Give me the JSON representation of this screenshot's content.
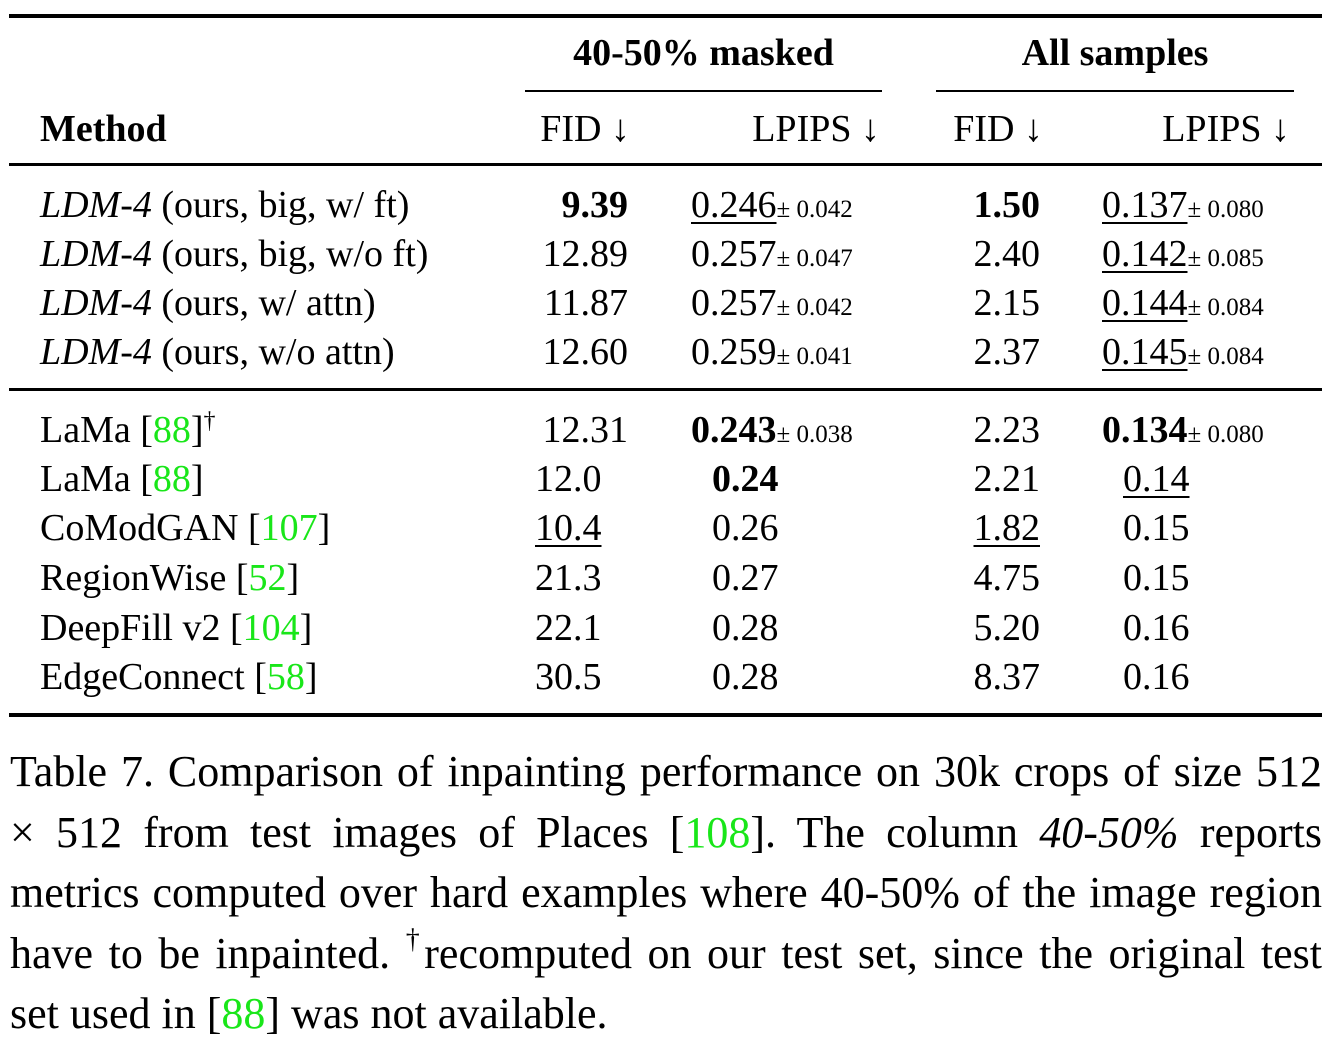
{
  "table": {
    "group_headers": [
      "40-50% masked",
      "All samples"
    ],
    "column_headers": {
      "method": "Method",
      "fid_a": "FID ↓",
      "lpips_a": "LPIPS ↓",
      "fid_b": "FID ↓",
      "lpips_b": "LPIPS ↓"
    },
    "section_1": [
      {
        "method_name": "LDM-4",
        "method_suffix": " (ours, big, w/ ft)",
        "fid_a": "9.39",
        "lpips_a": "0.246",
        "lpips_a_pm": "± 0.042",
        "fid_b": "1.50",
        "lpips_b": "0.137",
        "lpips_b_pm": "± 0.080"
      },
      {
        "method_name": "LDM-4",
        "method_suffix": " (ours, big, w/o ft)",
        "fid_a": "12.89",
        "lpips_a": "0.257",
        "lpips_a_pm": "± 0.047",
        "fid_b": "2.40",
        "lpips_b": "0.142",
        "lpips_b_pm": "± 0.085"
      },
      {
        "method_name": "LDM-4",
        "method_suffix": " (ours, w/ attn)",
        "fid_a": "11.87",
        "lpips_a": "0.257",
        "lpips_a_pm": "± 0.042",
        "fid_b": "2.15",
        "lpips_b": "0.144",
        "lpips_b_pm": "± 0.084"
      },
      {
        "method_name": "LDM-4",
        "method_suffix": " (ours, w/o attn)",
        "fid_a": "12.60",
        "lpips_a": "0.259",
        "lpips_a_pm": "± 0.041",
        "fid_b": "2.37",
        "lpips_b": "0.145",
        "lpips_b_pm": "± 0.084"
      }
    ],
    "section_2": [
      {
        "method": "LaMa [",
        "ref": "88",
        "close": "]",
        "mark": "†",
        "fid_a": "12.31",
        "lpips_a": "0.243",
        "lpips_a_pm": "± 0.038",
        "fid_b": "2.23",
        "lpips_b": "0.134",
        "lpips_b_pm": "± 0.080"
      },
      {
        "method": "LaMa [",
        "ref": "88",
        "close": "]",
        "fid_a": "12.0",
        "lpips_a": "0.24",
        "fid_b": "2.21",
        "lpips_b": "0.14"
      },
      {
        "method": "CoModGAN [",
        "ref": "107",
        "close": "]",
        "fid_a": "10.4",
        "lpips_a": "0.26",
        "fid_b": "1.82",
        "lpips_b": "0.15"
      },
      {
        "method": "RegionWise [",
        "ref": "52",
        "close": "]",
        "fid_a": "21.3",
        "lpips_a": "0.27",
        "fid_b": "4.75",
        "lpips_b": "0.15"
      },
      {
        "method": "DeepFill v2 [",
        "ref": "104",
        "close": "]",
        "fid_a": "22.1",
        "lpips_a": "0.28",
        "fid_b": "5.20",
        "lpips_b": "0.16"
      },
      {
        "method": "EdgeConnect [",
        "ref": "58",
        "close": "]",
        "fid_a": "30.5",
        "lpips_a": "0.28",
        "fid_b": "8.37",
        "lpips_b": "0.16"
      }
    ]
  },
  "caption": {
    "part1": "Table 7. Comparison of inpainting performance on 30k crops of size 512 × 512 from test images of Places [",
    "ref1": "108",
    "part2": "]. The column ",
    "italic": "40-50%",
    "part3": " reports metrics computed over hard examples where 40-50% of the image region have to be inpainted. ",
    "dagger": "†",
    "part4": "recomputed on our test set, since the original test set used in [",
    "ref2": "88",
    "part5": "] was not available."
  },
  "colors": {
    "citation": "#19e619",
    "text": "#000000"
  }
}
